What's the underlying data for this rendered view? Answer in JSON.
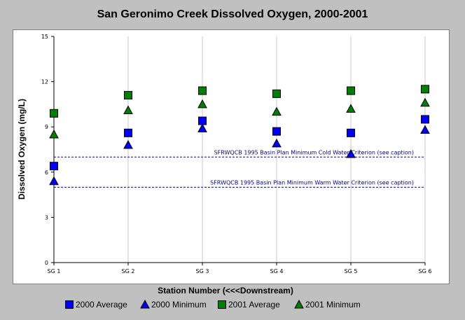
{
  "chart_data": {
    "type": "scatter",
    "title": "San Geronimo Creek Dissolved Oxygen, 2000-2001",
    "xlabel": "Station Number (<<<Downstream)",
    "ylabel": "Dissolved Oxygen (mg/L)",
    "categories": [
      "SG 1",
      "SG 2",
      "SG 3",
      "SG 4",
      "SG 5",
      "SG 6"
    ],
    "ylim": [
      0,
      15
    ],
    "yticks": [
      0,
      3,
      6,
      9,
      12,
      15
    ],
    "grid": "vertical",
    "legend_position": "bottom",
    "series": [
      {
        "name": "2000 Average",
        "marker": "square",
        "color": "#0000ff",
        "values": [
          6.4,
          8.6,
          9.4,
          8.7,
          8.6,
          9.5
        ]
      },
      {
        "name": "2000 Minimum",
        "marker": "triangle",
        "color": "#0000ff",
        "values": [
          5.4,
          7.8,
          8.9,
          7.9,
          7.2,
          8.8
        ]
      },
      {
        "name": "2001 Average",
        "marker": "square",
        "color": "#008000",
        "values": [
          9.9,
          11.1,
          11.4,
          11.2,
          11.4,
          11.5
        ]
      },
      {
        "name": "2001 Minimum",
        "marker": "triangle",
        "color": "#008000",
        "values": [
          8.5,
          10.1,
          10.5,
          10.0,
          10.2,
          10.6
        ]
      }
    ],
    "reference_lines": [
      {
        "label": "SFRWQCB 1995 Basin Plan Minimum Cold Water Criterion (see caption)",
        "value": 7.0,
        "color": "#0000cd"
      },
      {
        "label": "SFRWQCB 1995 Basin Plan Minimum Warm Water Criterion (see caption)",
        "value": 5.0,
        "color": "#0000cd"
      }
    ]
  }
}
